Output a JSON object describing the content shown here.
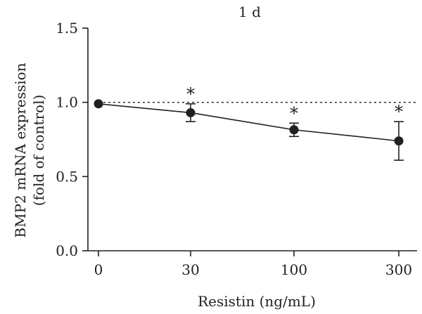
{
  "chart_data": {
    "type": "line",
    "title": "1 d",
    "xlabel": "Resistin (ng/mL)",
    "ylabel_line1": "BMP2 mRNA expression",
    "ylabel_line2": "(fold of control)",
    "categories": [
      "0",
      "30",
      "100",
      "300"
    ],
    "ylim": [
      0.0,
      1.5
    ],
    "y_ticks": [
      "0.0",
      "0.5",
      "1.0",
      "1.5"
    ],
    "reference_line": 1.0,
    "series": [
      {
        "values": [
          0.99,
          0.93,
          0.815,
          0.74
        ],
        "error": [
          0.0,
          0.06,
          0.045,
          0.13
        ],
        "significance": [
          "",
          "*",
          "*",
          "*"
        ]
      }
    ],
    "color": "#231f20",
    "grid": false,
    "legend": "none"
  }
}
